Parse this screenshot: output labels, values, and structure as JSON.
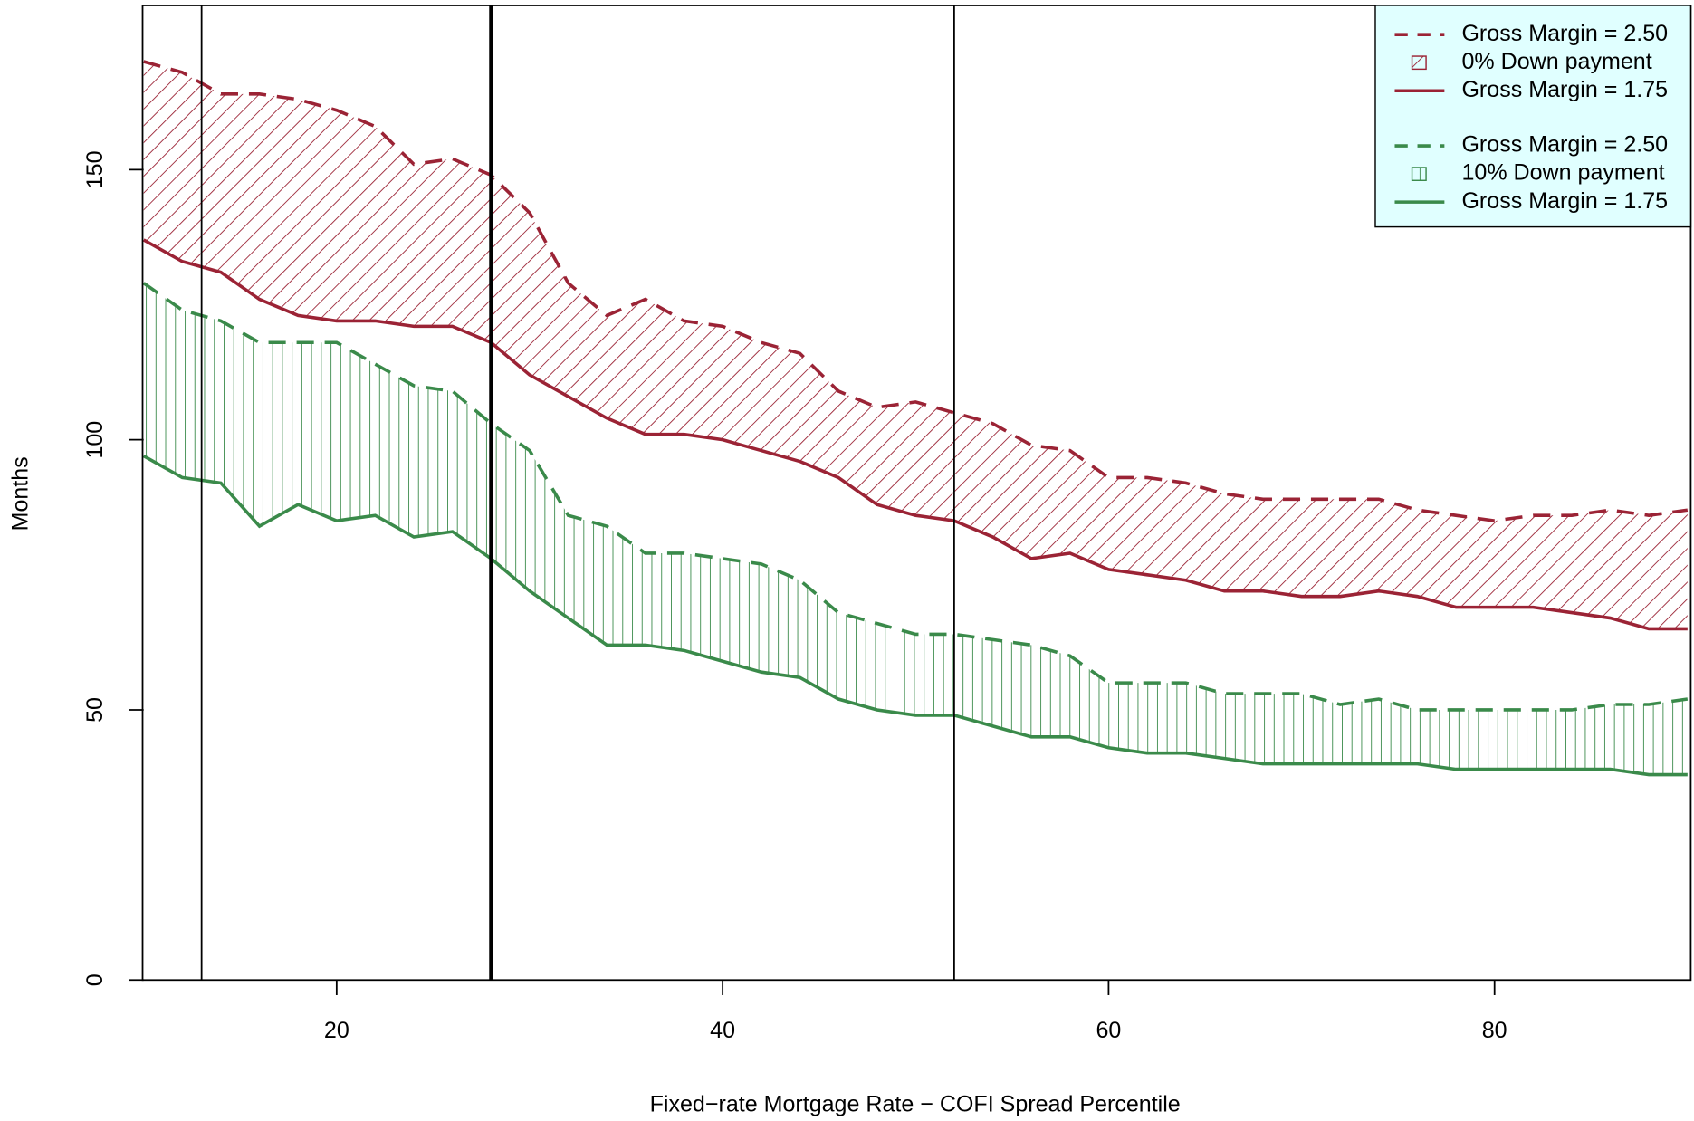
{
  "chart_data": {
    "type": "line",
    "x_label": "Fixed−rate Mortgage Rate − COFI Spread Percentile",
    "y_label": "Months",
    "xlim": [
      10,
      90
    ],
    "xticks": [
      20,
      40,
      60,
      80
    ],
    "ylim": [
      0,
      180
    ],
    "yticks": [
      0,
      50,
      100,
      150
    ],
    "vlines": [
      {
        "value": 13,
        "width": 1.5
      },
      {
        "value": 28,
        "width": 3.5
      },
      {
        "value": 52,
        "width": 1.5
      }
    ],
    "legend": "top-right",
    "legend_background": "#e0ffff",
    "x": [
      10,
      12,
      14,
      16,
      18,
      20,
      22,
      24,
      26,
      28,
      30,
      32,
      34,
      36,
      38,
      40,
      42,
      44,
      46,
      48,
      50,
      52,
      54,
      56,
      58,
      60,
      62,
      64,
      66,
      68,
      70,
      72,
      74,
      76,
      78,
      80,
      82,
      84,
      86,
      88,
      90
    ],
    "groups": [
      {
        "name": "0% Down payment",
        "color": "#9b2335",
        "hatch": "diagonal",
        "series": [
          {
            "name": "Gross Margin = 2.50",
            "dash": true,
            "values": [
              170,
              168,
              164,
              164,
              163,
              161,
              158,
              151,
              152,
              149,
              142,
              129,
              123,
              126,
              122,
              121,
              118,
              116,
              109,
              106,
              107,
              105,
              103,
              99,
              98,
              93,
              93,
              92,
              90,
              89,
              89,
              89,
              89,
              87,
              86,
              85,
              86,
              86,
              87,
              86,
              87
            ]
          },
          {
            "name": "Gross Margin = 1.75",
            "dash": false,
            "values": [
              137,
              133,
              131,
              126,
              123,
              122,
              122,
              121,
              121,
              118,
              112,
              108,
              104,
              101,
              101,
              100,
              98,
              96,
              93,
              88,
              86,
              85,
              82,
              78,
              79,
              76,
              75,
              74,
              72,
              72,
              71,
              71,
              72,
              71,
              69,
              69,
              69,
              68,
              67,
              65,
              65
            ]
          }
        ]
      },
      {
        "name": "10% Down payment",
        "color": "#3a8a4a",
        "hatch": "vertical",
        "series": [
          {
            "name": "Gross Margin = 2.50",
            "dash": true,
            "values": [
              129,
              124,
              122,
              118,
              118,
              118,
              114,
              110,
              109,
              103,
              98,
              86,
              84,
              79,
              79,
              78,
              77,
              74,
              68,
              66,
              64,
              64,
              63,
              62,
              60,
              55,
              55,
              55,
              53,
              53,
              53,
              51,
              52,
              50,
              50,
              50,
              50,
              50,
              51,
              51,
              52
            ]
          },
          {
            "name": "Gross Margin = 1.75",
            "dash": false,
            "values": [
              97,
              93,
              92,
              84,
              88,
              85,
              86,
              82,
              83,
              78,
              72,
              67,
              62,
              62,
              61,
              59,
              57,
              56,
              52,
              50,
              49,
              49,
              47,
              45,
              45,
              43,
              42,
              42,
              41,
              40,
              40,
              40,
              40,
              40,
              39,
              39,
              39,
              39,
              39,
              38,
              38
            ]
          }
        ]
      }
    ]
  }
}
